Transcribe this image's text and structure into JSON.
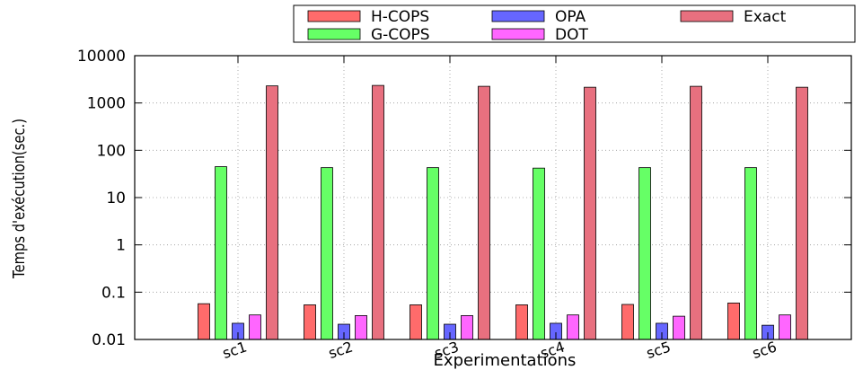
{
  "chart_data": {
    "type": "bar",
    "title": "",
    "xlabel": "Experimentations",
    "ylabel": "Temps d'exécution(sec.)",
    "y_scale": "log",
    "ylim": [
      0.01,
      10000
    ],
    "grid": true,
    "legend_position": "top-right",
    "y_tick_labels": [
      "0.01",
      "0.1",
      "1",
      "10",
      "100",
      "1000",
      "10000"
    ],
    "categories": [
      "sc1",
      "sc2",
      "sc3",
      "sc4",
      "sc5",
      "sc6"
    ],
    "series": [
      {
        "name": "H-COPS",
        "color": "#ff6b6b",
        "values": [
          0.057,
          0.054,
          0.054,
          0.054,
          0.055,
          0.059
        ]
      },
      {
        "name": "OPA",
        "color": "#6666ff",
        "values": [
          0.022,
          0.021,
          0.021,
          0.022,
          0.022,
          0.02
        ]
      },
      {
        "name": "DOT",
        "color": "#ff66ff",
        "values": [
          0.033,
          0.032,
          0.032,
          0.033,
          0.031,
          0.033
        ]
      },
      {
        "name": "G-COPS",
        "color": "#66ff66",
        "values": [
          45,
          43,
          43,
          42,
          43,
          43
        ]
      },
      {
        "name": "Exact",
        "color": "#e8707f",
        "values": [
          2300,
          2350,
          2250,
          2150,
          2250,
          2150
        ]
      }
    ]
  }
}
